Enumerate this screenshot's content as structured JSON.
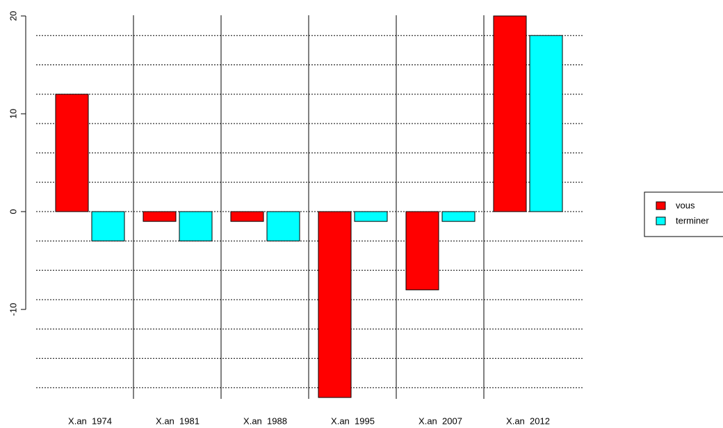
{
  "chart_data": {
    "type": "bar",
    "categories": [
      "X.an  1974",
      "X.an  1981",
      "X.an  1988",
      "X.an  1995",
      "X.an  2007",
      "X.an  2012"
    ],
    "series": [
      {
        "name": "vous",
        "color": "#ff0000",
        "values": [
          12,
          -1,
          -1,
          -19,
          -8,
          20
        ]
      },
      {
        "name": "terminer",
        "color": "#00ffff",
        "values": [
          -3,
          -3,
          -3,
          -1,
          -1,
          18
        ]
      }
    ],
    "ylim": [
      -19,
      20
    ],
    "yticks": [
      -10,
      0,
      10,
      20
    ],
    "grid_lines": [
      -18,
      -15,
      -12,
      -9,
      -6,
      -3,
      0,
      3,
      6,
      9,
      12,
      15,
      18
    ],
    "legend": "right"
  }
}
